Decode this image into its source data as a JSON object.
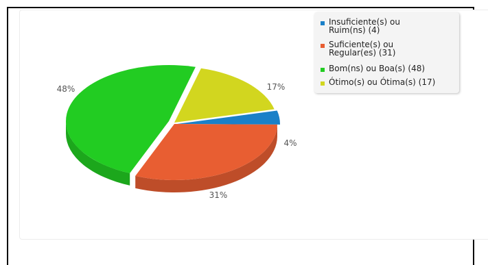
{
  "chart_data": {
    "type": "pie",
    "title": "",
    "slices": [
      {
        "label": "Insuficiente(s) ou Ruim(ns) (4)",
        "value": 4,
        "pct_label": "4%",
        "color": "#1a80c8"
      },
      {
        "label": "Suficiente(s) ou Regular(es) (31)",
        "value": 31,
        "pct_label": "31%",
        "color": "#e85e32"
      },
      {
        "label": "Bom(ns) ou Boa(s) (48)",
        "value": 48,
        "pct_label": "48%",
        "color": "#22cc22"
      },
      {
        "label": "Ótimo(s) ou Ótima(s) (17)",
        "value": 17,
        "pct_label": "17%",
        "color": "#d2d61f"
      }
    ],
    "legend_position": "top-right"
  },
  "legend": {
    "items": [
      {
        "lines": [
          "Insuficiente(s) ou",
          "Ruim(ns) (4)"
        ],
        "color": "#1a80c8"
      },
      {
        "lines": [
          "Suficiente(s) ou",
          "Regular(es) (31)"
        ],
        "color": "#e85e32"
      },
      {
        "lines": [
          "Bom(ns) ou Boa(s) (48)"
        ],
        "color": "#22cc22"
      },
      {
        "lines": [
          "Ótimo(s) ou Ótima(s) (17)"
        ],
        "color": "#d2d61f"
      }
    ]
  }
}
